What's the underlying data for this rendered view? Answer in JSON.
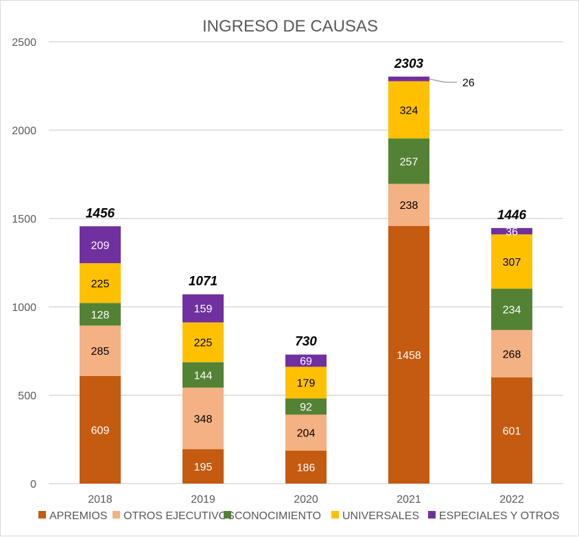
{
  "chart_data": {
    "type": "bar",
    "stacked": true,
    "title": "INGRESO DE CAUSAS",
    "xlabel": "",
    "ylabel": "",
    "ylim": [
      0,
      2500
    ],
    "y_ticks": [
      0,
      500,
      1000,
      1500,
      2000,
      2500
    ],
    "grid": true,
    "legend_position": "bottom",
    "categories": [
      "2018",
      "2019",
      "2020",
      "2021",
      "2022"
    ],
    "series": [
      {
        "name": "APREMIOS",
        "color": "#C55A11",
        "label_color": "#ffffff",
        "values": [
          609,
          195,
          186,
          1458,
          601
        ]
      },
      {
        "name": "OTROS EJECUTIVOS",
        "color": "#F4B183",
        "label_color": "#000000",
        "values": [
          285,
          348,
          204,
          238,
          268
        ]
      },
      {
        "name": "CONOCIMIENTO",
        "color": "#548235",
        "label_color": "#ffffff",
        "values": [
          128,
          144,
          92,
          257,
          234
        ]
      },
      {
        "name": "UNIVERSALES",
        "color": "#FFC000",
        "label_color": "#000000",
        "values": [
          225,
          225,
          179,
          324,
          307
        ]
      },
      {
        "name": "ESPECIALES Y OTROS",
        "color": "#7030A0",
        "label_color": "#ffffff",
        "values": [
          209,
          159,
          69,
          26,
          36
        ]
      }
    ],
    "totals": [
      1456,
      1071,
      730,
      2303,
      1446
    ],
    "callouts": [
      {
        "category": "2021",
        "series": "ESPECIALES Y OTROS",
        "text": "26"
      }
    ]
  }
}
